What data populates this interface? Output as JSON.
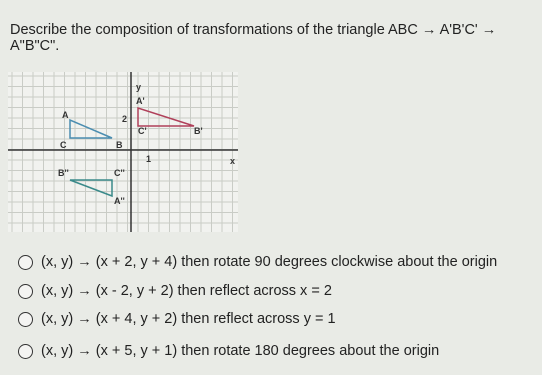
{
  "question": {
    "lines": [
      "Describe the composition of transformations of the triangle ABC → A'B'C' →",
      "A\"B\"C\"."
    ]
  },
  "figure": {
    "labels": [
      "y",
      "A'",
      "A",
      "2",
      "C'",
      "B'",
      "C",
      "B",
      "1",
      "x",
      "B''",
      "C''",
      "A''"
    ]
  },
  "options": [
    "(x, y) → (x + 2, y + 4) then rotate 90 degrees clockwise about the origin",
    "(x, y) → (x - 2, y + 2) then reflect across x = 2",
    "(x, y) → (x + 4, y + 2) then reflect across y = 1",
    "(x, y) → (x + 5, y + 1) then rotate 180 degrees about the origin"
  ]
}
